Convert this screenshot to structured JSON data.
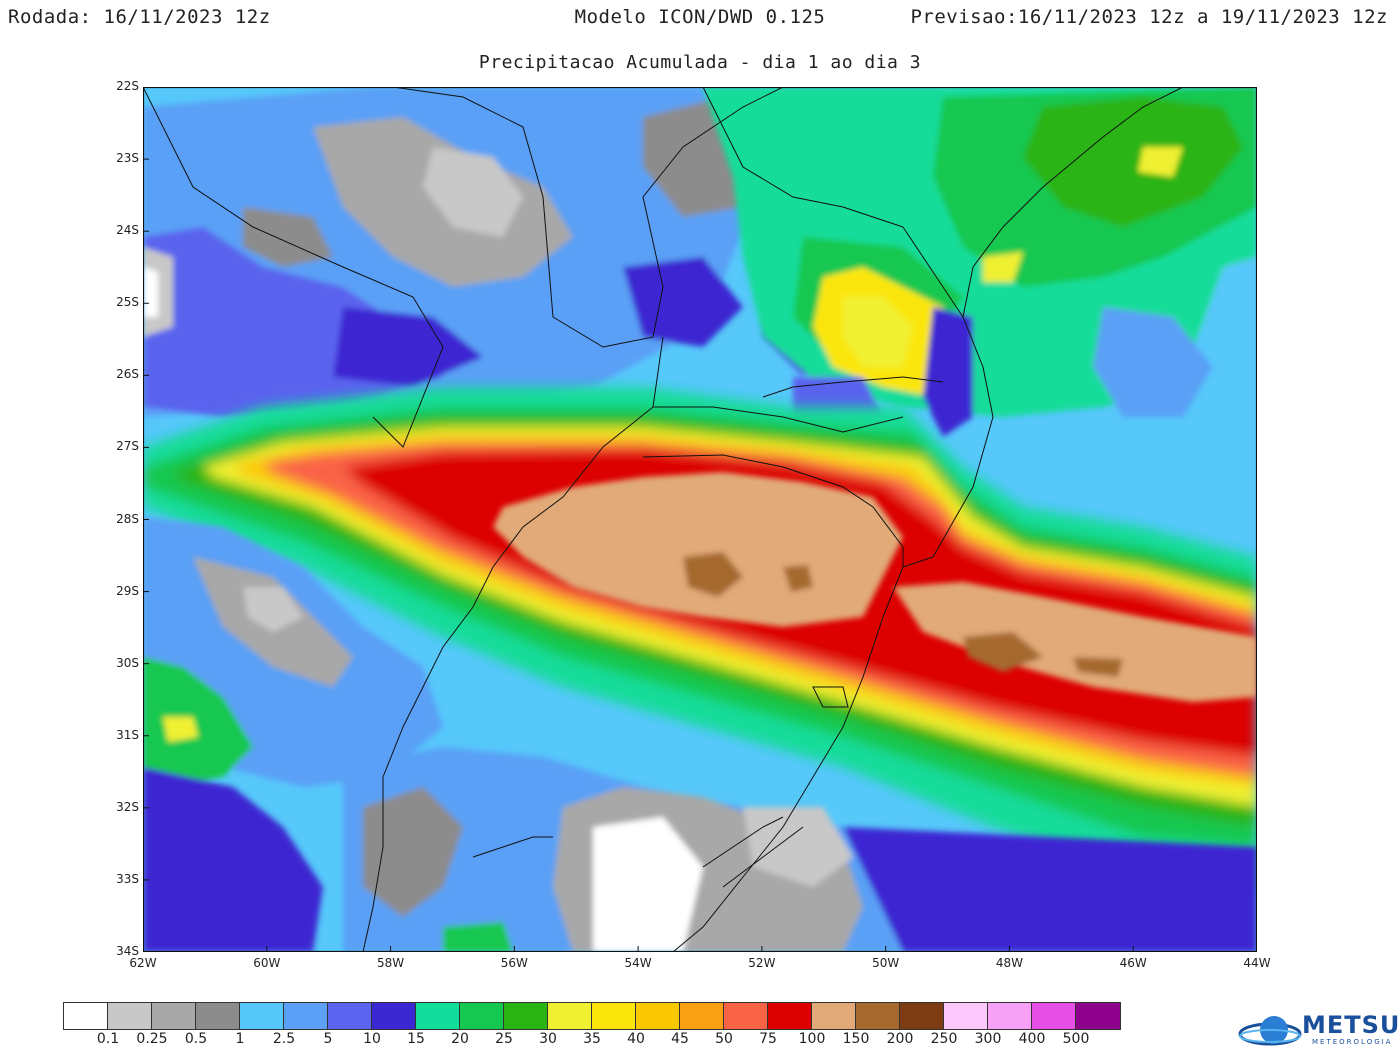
{
  "header": {
    "left": "Rodada: 16/11/2023 12z",
    "center": "Modelo ICON/DWD 0.125",
    "right": "Previsao:16/11/2023 12z a 19/11/2023 12z"
  },
  "subtitle": "Precipitacao Acumulada - dia 1 ao dia 3",
  "map": {
    "lat_labels": [
      "22S",
      "23S",
      "24S",
      "25S",
      "26S",
      "27S",
      "28S",
      "29S",
      "30S",
      "31S",
      "32S",
      "33S",
      "34S"
    ],
    "lon_labels": [
      "62W",
      "60W",
      "58W",
      "56W",
      "54W",
      "52W",
      "50W",
      "48W",
      "46W",
      "44W"
    ],
    "lat_range": [
      -34,
      -22
    ],
    "lon_range": [
      -62,
      -44
    ]
  },
  "legend": {
    "colors": [
      "#ffffff",
      "#c8c8c8",
      "#a8a8a8",
      "#8c8c8c",
      "#56c8fa",
      "#5aa0f6",
      "#5a64ee",
      "#3c28d2",
      "#14dc9a",
      "#14c850",
      "#2ab414",
      "#f0f032",
      "#fae60a",
      "#fac800",
      "#faa014",
      "#fa6446",
      "#dc0000",
      "#e1aa78",
      "#a5692d",
      "#7d3c14",
      "#fac8fa",
      "#f6a0f6",
      "#e650e6",
      "#8c008c"
    ],
    "labels": [
      "0.1",
      "0.25",
      "0.5",
      "1",
      "2.5",
      "5",
      "10",
      "15",
      "20",
      "25",
      "30",
      "35",
      "40",
      "45",
      "50",
      "75",
      "100",
      "150",
      "200",
      "250",
      "300",
      "400",
      "500"
    ]
  },
  "logo": {
    "name": "METSUL",
    "sub": "METEOROLOGIA",
    "icon": "globe-icon"
  }
}
